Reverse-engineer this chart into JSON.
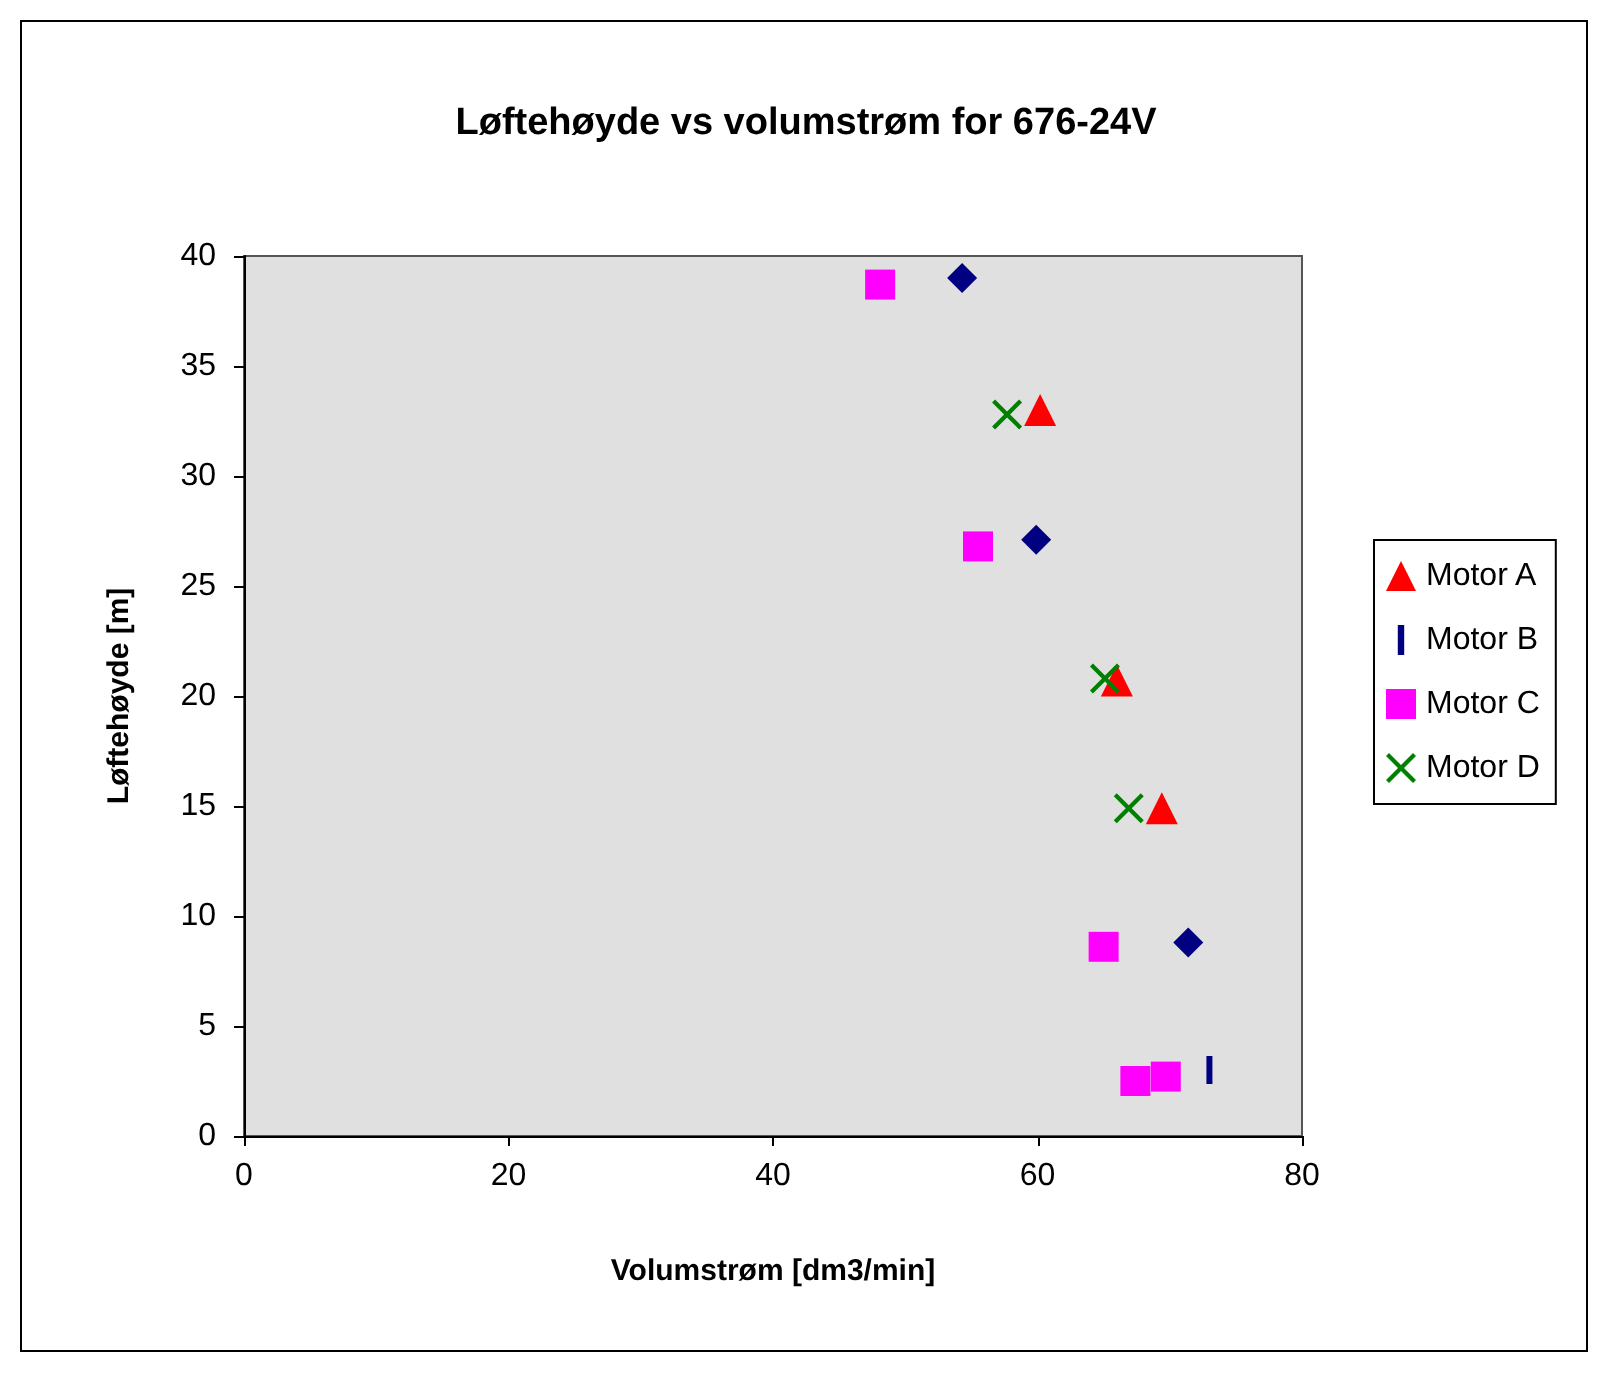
{
  "chart_data": {
    "type": "scatter",
    "title": "Løftehøyde vs volumstrøm for 676-24V",
    "xlabel": "Volumstrøm [dm3/min]",
    "ylabel": "Løftehøyde [m]",
    "xlim": [
      0,
      80
    ],
    "xticks": [
      0,
      20,
      40,
      60,
      80
    ],
    "ylim": [
      0,
      40
    ],
    "yticks": [
      0,
      5,
      10,
      15,
      20,
      25,
      30,
      35,
      40
    ],
    "grid": false,
    "legend": "right",
    "series": [
      {
        "name": "Motor A",
        "color": "#ff0000",
        "marker": "triangle",
        "x": [
          60.2,
          66.0,
          69.4
        ],
        "values": [
          33.0,
          20.7,
          14.9
        ]
      },
      {
        "name": "Motor B",
        "color": "#000080",
        "x": [
          73.0
        ],
        "values": [
          3.0
        ]
      },
      {
        "name": "Motor C",
        "color": "#ff00ff",
        "marker": "square",
        "x": [
          48.1,
          55.5,
          65.0,
          67.4,
          69.7
        ],
        "values": [
          38.7,
          26.8,
          8.6,
          2.5,
          2.7
        ]
      },
      {
        "name": "Motor D",
        "color": "#008000",
        "marker": "cross",
        "x": [
          57.7,
          65.1,
          66.9
        ],
        "values": [
          32.8,
          20.8,
          14.9
        ]
      },
      {
        "color": "#000080",
        "marker": "diamond",
        "x": [
          54.3,
          59.9,
          71.4
        ],
        "values": [
          39.0,
          27.1,
          8.8
        ]
      }
    ]
  }
}
